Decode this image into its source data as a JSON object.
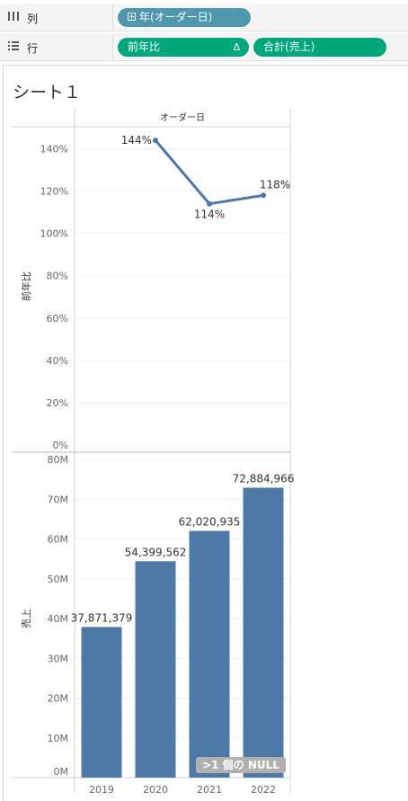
{
  "columns_shelf": {
    "icon": "columns-icon",
    "label": "列",
    "pill": {
      "icon": "plus-box-icon",
      "label": "年(オーダー日)",
      "color": "#4e97ad"
    }
  },
  "rows_shelf": {
    "icon": "rows-icon",
    "label": "行",
    "pills": [
      {
        "label": "前年比",
        "badge": "Δ",
        "color": "#01a77c"
      },
      {
        "label": "合計(売上)",
        "color": "#01a77c"
      }
    ]
  },
  "sheet": {
    "title": "シート１"
  },
  "chart_data": [
    {
      "type": "line",
      "column_header": "オーダー日",
      "ylabel": "前年比",
      "x": [
        "2019",
        "2020",
        "2021",
        "2022"
      ],
      "series": [
        {
          "values": [
            null,
            1.44,
            1.14,
            1.18
          ],
          "labels": [
            "",
            "144%",
            "114%",
            "118%"
          ],
          "color": "#4e79a7"
        }
      ],
      "ylim": [
        0,
        1.5
      ],
      "yticks": [
        0,
        0.2,
        0.4,
        0.6,
        0.8,
        1.0,
        1.2,
        1.4
      ],
      "ytick_labels": [
        "0%",
        "20%",
        "40%",
        "60%",
        "80%",
        "100%",
        "120%",
        "140%"
      ],
      "grid": true
    },
    {
      "type": "bar",
      "ylabel": "売上",
      "categories": [
        "2019",
        "2020",
        "2021",
        "2022"
      ],
      "values": [
        37871379,
        54399562,
        62020935,
        72884966
      ],
      "labels": [
        "37,871,379",
        "54,399,562",
        "62,020,935",
        "72,884,966"
      ],
      "color": "#4e79a7",
      "ylim": [
        0,
        80000000
      ],
      "yticks": [
        0,
        10000000,
        20000000,
        30000000,
        40000000,
        50000000,
        60000000,
        70000000,
        80000000
      ],
      "ytick_labels": [
        "0M",
        "10M",
        "20M",
        "30M",
        "40M",
        "50M",
        "60M",
        "70M",
        "80M"
      ],
      "grid": true
    }
  ],
  "null_indicator": {
    "label": ">1 個の NULL"
  }
}
